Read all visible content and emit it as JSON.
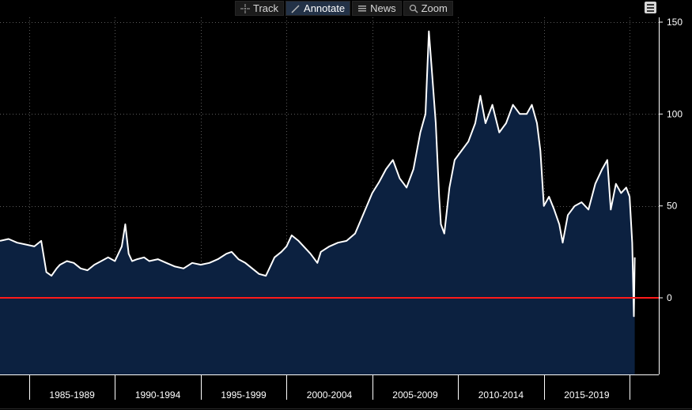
{
  "toolbar": {
    "items": [
      {
        "label": "Track",
        "icon": "crosshair-icon",
        "active": false
      },
      {
        "label": "Annotate",
        "icon": "pencil-icon",
        "active": true
      },
      {
        "label": "News",
        "icon": "news-icon",
        "active": false
      },
      {
        "label": "Zoom",
        "icon": "magnifier-icon",
        "active": false
      }
    ]
  },
  "colors": {
    "background": "#000000",
    "area_fill": "#0c2140",
    "line": "#ffffff",
    "zero_line": "#ff1a1a",
    "grid": "#5a5a5a"
  },
  "chart_data": {
    "type": "area",
    "title": "",
    "xlabel": "",
    "ylabel": "",
    "x_tick_labels": [
      "1985-1989",
      "1990-1994",
      "1995-1999",
      "2000-2004",
      "2005-2009",
      "2010-2014",
      "2015-2019"
    ],
    "y_ticks": [
      150,
      100,
      50,
      0
    ],
    "ylim": [
      -40,
      155
    ],
    "xlim": [
      1983.3,
      2021.7
    ],
    "grid": true,
    "reference_line": {
      "y": 0
    },
    "series": [
      {
        "x": [
          1983.3,
          1983.8,
          1984.3,
          1984.8,
          1985.3,
          1985.7,
          1986.0,
          1986.3,
          1986.6,
          1986.8,
          1987.2,
          1987.6,
          1988.0,
          1988.4,
          1988.8,
          1989.2,
          1989.6,
          1990.0,
          1990.4,
          1990.6,
          1990.8,
          1991.0,
          1991.3,
          1991.7,
          1992.0,
          1992.5,
          1993.0,
          1993.5,
          1994.0,
          1994.5,
          1995.0,
          1995.5,
          1996.0,
          1996.5,
          1996.8,
          1997.2,
          1997.6,
          1998.0,
          1998.4,
          1998.8,
          1999.0,
          1999.3,
          1999.7,
          2000.0,
          2000.3,
          2000.7,
          2001.0,
          2001.4,
          2001.8,
          2002.0,
          2002.5,
          2003.0,
          2003.5,
          2004.0,
          2004.5,
          2005.0,
          2005.4,
          2005.8,
          2006.2,
          2006.6,
          2007.0,
          2007.4,
          2007.8,
          2008.1,
          2008.3,
          2008.5,
          2008.7,
          2008.9,
          2009.0,
          2009.2,
          2009.5,
          2009.8,
          2010.2,
          2010.6,
          2011.0,
          2011.3,
          2011.6,
          2012.0,
          2012.4,
          2012.8,
          2013.2,
          2013.6,
          2014.0,
          2014.3,
          2014.6,
          2014.8,
          2015.0,
          2015.3,
          2015.6,
          2015.9,
          2016.1,
          2016.4,
          2016.8,
          2017.2,
          2017.6,
          2018.0,
          2018.4,
          2018.7,
          2018.9,
          2019.2,
          2019.5,
          2019.8,
          2020.0,
          2020.15,
          2020.25,
          2020.3
        ],
        "y": [
          31,
          32,
          30,
          29,
          28,
          31,
          14,
          12,
          16,
          18,
          20,
          19,
          16,
          15,
          18,
          20,
          22,
          20,
          28,
          40,
          24,
          20,
          21,
          22,
          20,
          21,
          19,
          17,
          16,
          19,
          18,
          19,
          21,
          24,
          25,
          21,
          19,
          16,
          13,
          12,
          16,
          22,
          25,
          28,
          34,
          31,
          28,
          24,
          19,
          25,
          28,
          30,
          31,
          35,
          46,
          57,
          63,
          70,
          75,
          65,
          60,
          70,
          90,
          100,
          145,
          120,
          95,
          55,
          40,
          35,
          60,
          75,
          80,
          85,
          95,
          110,
          95,
          105,
          90,
          95,
          105,
          100,
          100,
          105,
          95,
          80,
          50,
          55,
          48,
          40,
          30,
          45,
          50,
          52,
          48,
          62,
          70,
          75,
          48,
          62,
          57,
          60,
          55,
          30,
          -10,
          22
        ]
      }
    ]
  }
}
